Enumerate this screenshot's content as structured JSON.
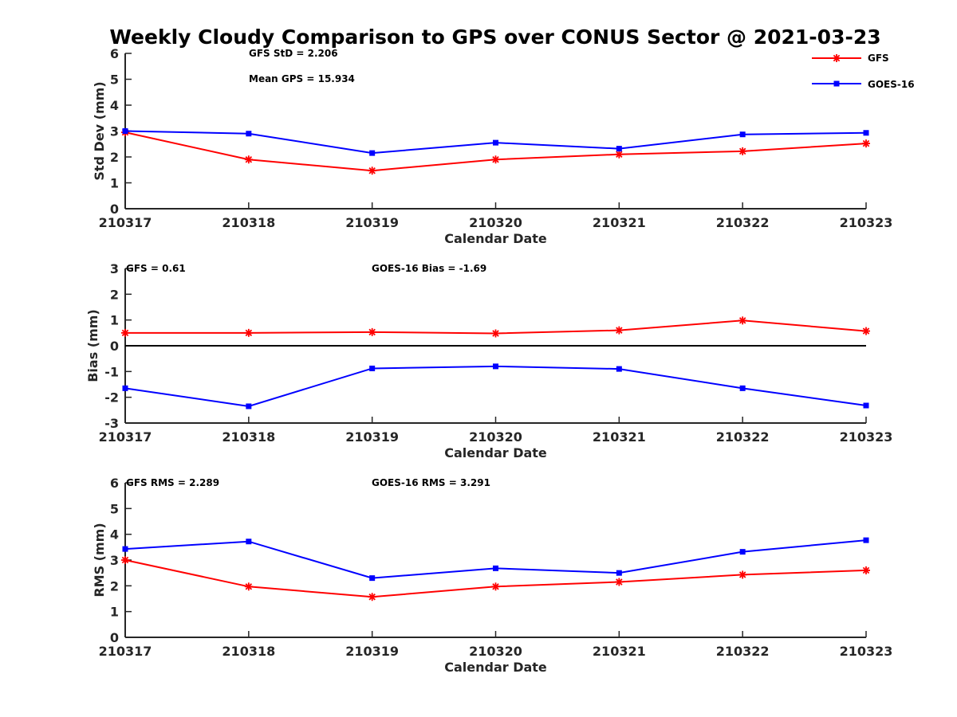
{
  "title": "Weekly Cloudy Comparison to GPS over CONUS Sector @ 2021-03-23",
  "legend": {
    "placement": "top-right",
    "items": [
      {
        "label": "GFS",
        "color": "#ff0000",
        "marker": "asterisk"
      },
      {
        "label": "GOES-16",
        "color": "#0000ff",
        "marker": "square"
      }
    ]
  },
  "chart_data": [
    {
      "type": "line",
      "xlabel": "Calendar Date",
      "ylabel": "Std Dev (mm)",
      "x": [
        "210317",
        "210318",
        "210319",
        "210320",
        "210321",
        "210322",
        "210323"
      ],
      "ylim": [
        0,
        6
      ],
      "yticks": [
        "0",
        "1",
        "2",
        "3",
        "4",
        "5",
        "6"
      ],
      "zero_line": false,
      "grid": false,
      "annotations": [
        "GFS StD = 2.206",
        "Mean GPS = 15.934"
      ],
      "series": [
        {
          "name": "GFS",
          "color": "#ff0000",
          "marker": "asterisk",
          "values": [
            2.95,
            1.9,
            1.47,
            1.9,
            2.1,
            2.22,
            2.52
          ]
        },
        {
          "name": "GOES-16",
          "color": "#0000ff",
          "marker": "square",
          "values": [
            3.0,
            2.9,
            2.15,
            2.55,
            2.32,
            2.87,
            2.93
          ]
        }
      ]
    },
    {
      "type": "line",
      "xlabel": "Calendar Date",
      "ylabel": "Bias (mm)",
      "x": [
        "210317",
        "210318",
        "210319",
        "210320",
        "210321",
        "210322",
        "210323"
      ],
      "ylim": [
        -3,
        3
      ],
      "yticks": [
        "-3",
        "-2",
        "-1",
        "0",
        "1",
        "2",
        "3"
      ],
      "zero_line": true,
      "grid": false,
      "annotations": [
        "GFS = 0.61",
        "GOES-16 Bias  = -1.69"
      ],
      "series": [
        {
          "name": "GFS",
          "color": "#ff0000",
          "marker": "asterisk",
          "values": [
            0.5,
            0.5,
            0.53,
            0.48,
            0.6,
            0.98,
            0.57
          ]
        },
        {
          "name": "GOES-16",
          "color": "#0000ff",
          "marker": "square",
          "values": [
            -1.65,
            -2.35,
            -0.88,
            -0.8,
            -0.9,
            -1.65,
            -2.32
          ]
        }
      ]
    },
    {
      "type": "line",
      "xlabel": "Calendar Date",
      "ylabel": "RMS (mm)",
      "x": [
        "210317",
        "210318",
        "210319",
        "210320",
        "210321",
        "210322",
        "210323"
      ],
      "ylim": [
        0,
        6
      ],
      "yticks": [
        "0",
        "1",
        "2",
        "3",
        "4",
        "5",
        "6"
      ],
      "zero_line": false,
      "grid": false,
      "annotations": [
        "GFS RMS = 2.289",
        "GOES-16 RMS = 3.291"
      ],
      "series": [
        {
          "name": "GFS",
          "color": "#ff0000",
          "marker": "asterisk",
          "values": [
            3.0,
            1.97,
            1.57,
            1.97,
            2.15,
            2.43,
            2.6
          ]
        },
        {
          "name": "GOES-16",
          "color": "#0000ff",
          "marker": "square",
          "values": [
            3.43,
            3.72,
            2.3,
            2.68,
            2.5,
            3.32,
            3.77
          ]
        }
      ]
    }
  ]
}
